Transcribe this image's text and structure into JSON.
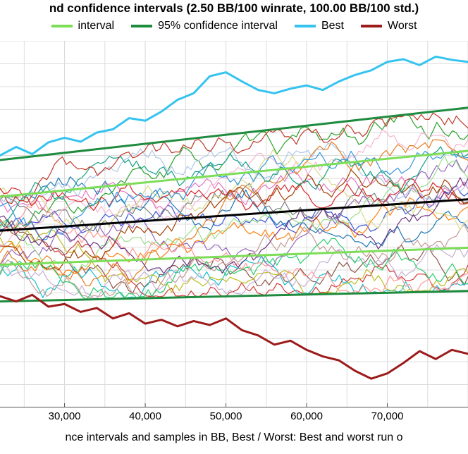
{
  "chart": {
    "type": "line",
    "title": "nd confidence intervals (2.50 BB/100 winrate, 100.00 BB/100 std.)",
    "title_fontsize": 17,
    "background_color": "#ffffff",
    "plot_background": "#ffffff",
    "grid_color": "#dcdcdc",
    "grid_width": 1,
    "axis_color": "#000000",
    "xlim": [
      22000,
      80000
    ],
    "ylim": [
      -2800,
      2800
    ],
    "xtick_step": 10000,
    "ytick_step_minor": 350,
    "xticks": [
      30000,
      40000,
      50000,
      60000,
      70000
    ],
    "xtick_labels": [
      "30,000",
      "40,000",
      "50,000",
      "60,000",
      "70,000"
    ],
    "xlabel": "nce intervals and samples in BB, Best / Worst: Best and worst run o",
    "label_fontsize": 16,
    "legend": {
      "position": "top",
      "fontsize": 16,
      "items": [
        {
          "label": "interval",
          "color": "#7cde57",
          "width": 4
        },
        {
          "label": "95% confidence interval",
          "color": "#1e8b3e",
          "width": 4
        },
        {
          "label": "Best",
          "color": "#35c3f0",
          "width": 4
        },
        {
          "label": "Worst",
          "color": "#9c1b1b",
          "width": 4
        }
      ]
    },
    "ev_line": {
      "color": "#000000",
      "width": 3,
      "y_start": -100,
      "y_end": 380
    },
    "ci70": {
      "color": "#7cde57",
      "width": 3,
      "upper_start": 420,
      "upper_end": 1120,
      "lower_start": -620,
      "lower_end": -360
    },
    "ci95": {
      "color": "#1e8b3e",
      "width": 3,
      "upper_start": 980,
      "upper_end": 1780,
      "lower_start": -1180,
      "lower_end": -1020
    },
    "best": {
      "color": "#35c3f0",
      "width": 3,
      "points": [
        [
          22000,
          1050
        ],
        [
          24000,
          1180
        ],
        [
          26000,
          1070
        ],
        [
          28000,
          1250
        ],
        [
          30000,
          1320
        ],
        [
          32000,
          1260
        ],
        [
          34000,
          1400
        ],
        [
          36000,
          1450
        ],
        [
          38000,
          1620
        ],
        [
          40000,
          1580
        ],
        [
          42000,
          1720
        ],
        [
          44000,
          1900
        ],
        [
          46000,
          2000
        ],
        [
          48000,
          2260
        ],
        [
          50000,
          2320
        ],
        [
          52000,
          2180
        ],
        [
          54000,
          2050
        ],
        [
          56000,
          2000
        ],
        [
          58000,
          2070
        ],
        [
          60000,
          2120
        ],
        [
          62000,
          2050
        ],
        [
          64000,
          2180
        ],
        [
          66000,
          2280
        ],
        [
          68000,
          2350
        ],
        [
          70000,
          2480
        ],
        [
          72000,
          2520
        ],
        [
          74000,
          2430
        ],
        [
          76000,
          2560
        ],
        [
          78000,
          2510
        ],
        [
          80000,
          2480
        ]
      ]
    },
    "worst": {
      "color": "#9c1b1b",
      "width": 3,
      "points": [
        [
          22000,
          -1100
        ],
        [
          24000,
          -1180
        ],
        [
          26000,
          -1080
        ],
        [
          28000,
          -1260
        ],
        [
          30000,
          -1220
        ],
        [
          32000,
          -1340
        ],
        [
          34000,
          -1280
        ],
        [
          36000,
          -1440
        ],
        [
          38000,
          -1360
        ],
        [
          40000,
          -1520
        ],
        [
          42000,
          -1460
        ],
        [
          44000,
          -1560
        ],
        [
          46000,
          -1480
        ],
        [
          48000,
          -1540
        ],
        [
          50000,
          -1440
        ],
        [
          52000,
          -1620
        ],
        [
          54000,
          -1700
        ],
        [
          56000,
          -1840
        ],
        [
          58000,
          -1780
        ],
        [
          60000,
          -1920
        ],
        [
          62000,
          -2020
        ],
        [
          64000,
          -2080
        ],
        [
          66000,
          -2240
        ],
        [
          68000,
          -2360
        ],
        [
          70000,
          -2280
        ],
        [
          72000,
          -2120
        ],
        [
          74000,
          -1940
        ],
        [
          76000,
          -2060
        ],
        [
          78000,
          -1920
        ],
        [
          80000,
          -1980
        ]
      ]
    },
    "samples": {
      "width": 1.2,
      "seeds": [
        {
          "seed": 11,
          "color": "#3a55d9"
        },
        {
          "seed": 22,
          "color": "#d23a3a"
        },
        {
          "seed": 33,
          "color": "#2aa02a"
        },
        {
          "seed": 44,
          "color": "#e377c2"
        },
        {
          "seed": 55,
          "color": "#8c564b"
        },
        {
          "seed": 66,
          "color": "#17becf"
        },
        {
          "seed": 77,
          "color": "#bcbd22"
        },
        {
          "seed": 88,
          "color": "#7f7f7f"
        },
        {
          "seed": 99,
          "color": "#ff7f0e"
        },
        {
          "seed": 110,
          "color": "#9467bd"
        },
        {
          "seed": 121,
          "color": "#c49c94"
        },
        {
          "seed": 132,
          "color": "#f7b6d2"
        },
        {
          "seed": 143,
          "color": "#1f77b4"
        },
        {
          "seed": 154,
          "color": "#98df8a"
        },
        {
          "seed": 165,
          "color": "#ff9896"
        },
        {
          "seed": 176,
          "color": "#c5b0d5"
        },
        {
          "seed": 187,
          "color": "#aec7e8"
        },
        {
          "seed": 198,
          "color": "#dbdb8d"
        },
        {
          "seed": 209,
          "color": "#e67e22"
        },
        {
          "seed": 220,
          "color": "#2ecc71"
        },
        {
          "seed": 231,
          "color": "#d62728"
        },
        {
          "seed": 242,
          "color": "#3498db"
        },
        {
          "seed": 253,
          "color": "#a04000"
        },
        {
          "seed": 264,
          "color": "#6c3483"
        },
        {
          "seed": 275,
          "color": "#16a085"
        },
        {
          "seed": 286,
          "color": "#c0392b"
        }
      ]
    }
  }
}
